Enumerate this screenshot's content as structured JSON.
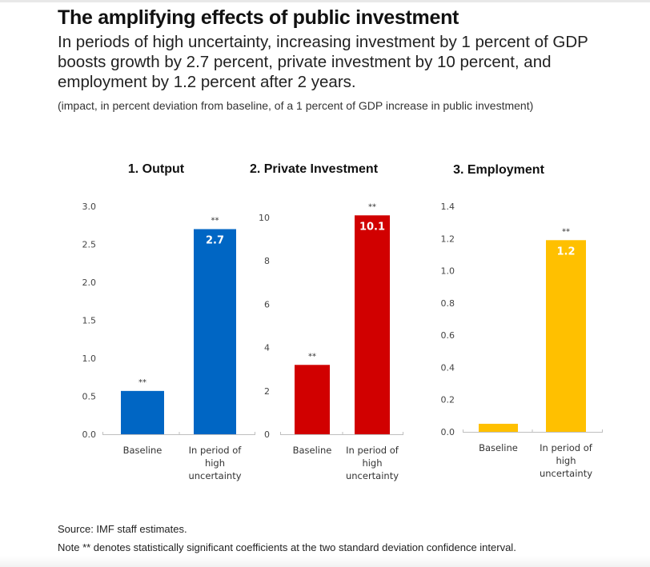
{
  "header": {
    "title": "The amplifying effects of public investment",
    "subtitle": "In periods of high uncertainty, increasing investment by 1 percent of GDP boosts growth by 2.7 percent, private investment by 10 percent, and employment by 1.2 percent after 2 years.",
    "note": "(impact, in percent deviation from baseline, of a 1 percent of GDP increase in public investment)"
  },
  "footer": {
    "source": "Source: IMF staff estimates.",
    "note": "Note  ** denotes statistically significant coefficients at the two standard deviation confidence interval."
  },
  "chart_data": [
    {
      "type": "bar",
      "title": "1. Output",
      "categories": [
        "Baseline",
        "In period of high uncertainty"
      ],
      "category_lines": [
        [
          "Baseline"
        ],
        [
          "In period of",
          "high",
          "uncertainty"
        ]
      ],
      "values": [
        0.57,
        2.7
      ],
      "data_labels": [
        "",
        "2.7"
      ],
      "significance": [
        "**",
        "**"
      ],
      "color": "#0066C4",
      "ylim": [
        0,
        3.0
      ],
      "yticks": [
        "0.0",
        "0.5",
        "1.0",
        "1.5",
        "2.0",
        "2.5",
        "3.0"
      ],
      "xlabel": "",
      "ylabel": "",
      "grid": false,
      "legend": "none"
    },
    {
      "type": "bar",
      "title": "2. Private Investment",
      "categories": [
        "Baseline",
        "In period of high uncertainty"
      ],
      "category_lines": [
        [
          "Baseline"
        ],
        [
          "In period of",
          "high",
          "uncertainty"
        ]
      ],
      "values": [
        3.2,
        10.1
      ],
      "data_labels": [
        "",
        "10.1"
      ],
      "significance": [
        "**",
        "**"
      ],
      "color": "#D10000",
      "ylim": [
        0,
        10
      ],
      "yticks": [
        "0",
        "2",
        "4",
        "6",
        "8",
        "10"
      ],
      "xlabel": "",
      "ylabel": "",
      "grid": false,
      "legend": "none"
    },
    {
      "type": "bar",
      "title": "3. Employment",
      "categories": [
        "Baseline",
        "In period of high uncertainty"
      ],
      "category_lines": [
        [
          "Baseline"
        ],
        [
          "In period of",
          "high",
          "uncertainty"
        ]
      ],
      "values": [
        0.05,
        1.19
      ],
      "data_labels": [
        "",
        "1.2"
      ],
      "significance": [
        "",
        "**"
      ],
      "color": "#FFC000",
      "ylim": [
        0,
        1.4
      ],
      "yticks": [
        "0.0",
        "0.2",
        "0.4",
        "0.6",
        "0.8",
        "1.0",
        "1.2",
        "1.4"
      ],
      "xlabel": "",
      "ylabel": "",
      "grid": false,
      "legend": "none"
    }
  ]
}
